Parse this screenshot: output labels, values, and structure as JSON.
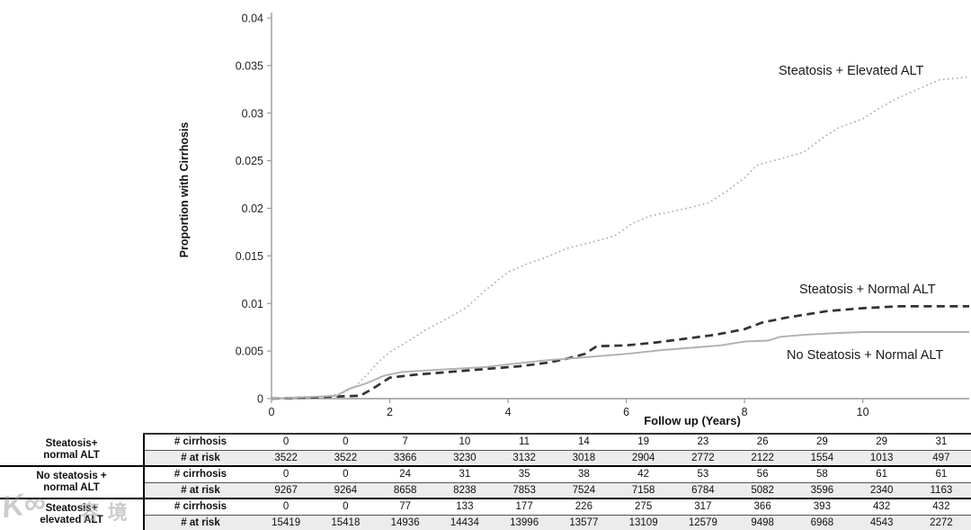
{
  "chart_data": {
    "type": "line",
    "title": "",
    "xlabel": "Follow up (Years)",
    "ylabel": "Proportion with Cirrhosis",
    "xlim": [
      0,
      11.8
    ],
    "ylim": [
      0,
      0.04
    ],
    "grid": "off",
    "legend_position": "inline-labels",
    "x_ticks": [
      {
        "v": 0,
        "label": "0"
      },
      {
        "v": 2,
        "label": "2"
      },
      {
        "v": 4,
        "label": "4"
      },
      {
        "v": 6,
        "label": "6"
      },
      {
        "v": 8,
        "label": "8"
      },
      {
        "v": 10,
        "label": "10"
      }
    ],
    "y_ticks": [
      {
        "v": 0.04,
        "label": "0.04"
      },
      {
        "v": 0.035,
        "label": "0.035"
      },
      {
        "v": 0.03,
        "label": "0.03"
      },
      {
        "v": 0.025,
        "label": "0.025"
      },
      {
        "v": 0.02,
        "label": "0.02"
      },
      {
        "v": 0.015,
        "label": "0.015"
      },
      {
        "v": 0.01,
        "label": "0.01"
      },
      {
        "v": 0.005,
        "label": "0.005"
      },
      {
        "v": 0,
        "label": "0"
      }
    ],
    "series": [
      {
        "name": "Steatosis + Elevated ALT",
        "style": "dotted",
        "color": "#b3b3b3",
        "points": [
          [
            0,
            0
          ],
          [
            0.9,
            0.0002
          ],
          [
            1.2,
            0.0006
          ],
          [
            1.4,
            0.0012
          ],
          [
            1.6,
            0.0024
          ],
          [
            1.8,
            0.0038
          ],
          [
            2,
            0.0049
          ],
          [
            2.3,
            0.006
          ],
          [
            2.6,
            0.0072
          ],
          [
            3,
            0.0085
          ],
          [
            3.3,
            0.0096
          ],
          [
            3.6,
            0.0113
          ],
          [
            4,
            0.0133
          ],
          [
            4.3,
            0.0141
          ],
          [
            4.7,
            0.015
          ],
          [
            5,
            0.0158
          ],
          [
            5.4,
            0.0164
          ],
          [
            5.8,
            0.0171
          ],
          [
            6.1,
            0.0184
          ],
          [
            6.4,
            0.0192
          ],
          [
            6.8,
            0.0197
          ],
          [
            7.1,
            0.0201
          ],
          [
            7.4,
            0.0206
          ],
          [
            7.7,
            0.0218
          ],
          [
            8,
            0.0232
          ],
          [
            8.2,
            0.0245
          ],
          [
            8.6,
            0.0252
          ],
          [
            9,
            0.0259
          ],
          [
            9.3,
            0.0273
          ],
          [
            9.6,
            0.0285
          ],
          [
            10,
            0.0294
          ],
          [
            10.3,
            0.0306
          ],
          [
            10.6,
            0.0316
          ],
          [
            11,
            0.0327
          ],
          [
            11.3,
            0.0335
          ],
          [
            11.8,
            0.0338
          ]
        ]
      },
      {
        "name": "Steatosis + Normal ALT",
        "style": "dashed",
        "color": "#333333",
        "points": [
          [
            0,
            0
          ],
          [
            1.5,
            0.0003
          ],
          [
            1.7,
            0.001
          ],
          [
            2,
            0.0022
          ],
          [
            2.4,
            0.0025
          ],
          [
            3,
            0.0028
          ],
          [
            3.6,
            0.0031
          ],
          [
            4.2,
            0.0034
          ],
          [
            4.7,
            0.0038
          ],
          [
            5,
            0.0042
          ],
          [
            5.3,
            0.0047
          ],
          [
            5.5,
            0.0055
          ],
          [
            6,
            0.0056
          ],
          [
            6.5,
            0.0059
          ],
          [
            7,
            0.0063
          ],
          [
            7.5,
            0.0067
          ],
          [
            8,
            0.0073
          ],
          [
            8.3,
            0.008
          ],
          [
            8.7,
            0.0085
          ],
          [
            9,
            0.0088
          ],
          [
            9.4,
            0.0092
          ],
          [
            10,
            0.0095
          ],
          [
            10.6,
            0.0097
          ],
          [
            11.8,
            0.0097
          ]
        ]
      },
      {
        "name": "No Steatosis + Normal ALT",
        "style": "solid",
        "color": "#b0b0b0",
        "points": [
          [
            0,
            0
          ],
          [
            1.1,
            0.0003
          ],
          [
            1.3,
            0.001
          ],
          [
            1.6,
            0.0016
          ],
          [
            1.9,
            0.0024
          ],
          [
            2.2,
            0.0028
          ],
          [
            3,
            0.0031
          ],
          [
            3.6,
            0.0033
          ],
          [
            4,
            0.0036
          ],
          [
            4.6,
            0.004
          ],
          [
            5,
            0.0042
          ],
          [
            5.6,
            0.0045
          ],
          [
            6,
            0.0047
          ],
          [
            6.6,
            0.0051
          ],
          [
            7,
            0.0053
          ],
          [
            7.6,
            0.0056
          ],
          [
            8,
            0.006
          ],
          [
            8.4,
            0.0061
          ],
          [
            8.6,
            0.0065
          ],
          [
            9,
            0.0067
          ],
          [
            9.6,
            0.0069
          ],
          [
            10,
            0.007
          ],
          [
            11.8,
            0.007
          ]
        ]
      }
    ]
  },
  "risk_table": {
    "groups": [
      {
        "label_lines": [
          "Steatosis+",
          "normal ALT"
        ],
        "rows": [
          {
            "label": "# cirrhosis",
            "values": [
              0,
              0,
              7,
              10,
              11,
              14,
              19,
              23,
              26,
              29,
              29,
              31
            ]
          },
          {
            "label": "# at risk",
            "values": [
              3522,
              3522,
              3366,
              3230,
              3132,
              3018,
              2904,
              2772,
              2122,
              1554,
              1013,
              497
            ]
          }
        ]
      },
      {
        "label_lines": [
          "No steatosis +",
          "normal ALT"
        ],
        "rows": [
          {
            "label": "# cirrhosis",
            "values": [
              0,
              0,
              24,
              31,
              35,
              38,
              42,
              53,
              56,
              58,
              61,
              61
            ]
          },
          {
            "label": "# at risk",
            "values": [
              9267,
              9264,
              8658,
              8238,
              7853,
              7524,
              7158,
              6784,
              5082,
              3596,
              2340,
              1163
            ]
          }
        ]
      },
      {
        "label_lines": [
          "Steatosis+",
          "elevated ALT"
        ],
        "rows": [
          {
            "label": "# cirrhosis",
            "values": [
              0,
              0,
              77,
              133,
              177,
              226,
              275,
              317,
              366,
              393,
              432,
              432
            ]
          },
          {
            "label": "# at risk",
            "values": [
              15419,
              15418,
              14936,
              14434,
              13996,
              13577,
              13109,
              12579,
              9498,
              6968,
              4543,
              2272
            ]
          }
        ]
      }
    ]
  },
  "watermark": {
    "logo": "K∞",
    "text": "容境"
  }
}
